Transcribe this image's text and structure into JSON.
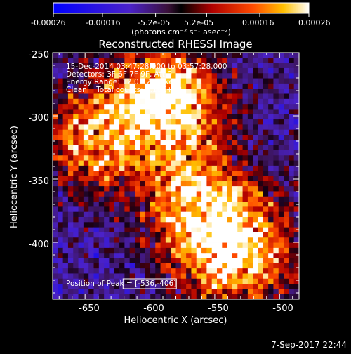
{
  "colorbar": {
    "tick_labels": [
      "-0.00026",
      "-0.00016",
      "-5.2e-05",
      "5.2e-05",
      "0.00016",
      "0.00026"
    ],
    "unit_label": "(photons cm⁻² s⁻¹ asec⁻²)",
    "range": [
      -0.00026,
      0.00026
    ]
  },
  "chart_data": {
    "type": "heatmap",
    "title": "Reconstructed RHESSI Image",
    "xlabel": "Heliocentric X (arcsec)",
    "ylabel": "Heliocentric Y (arcsec)",
    "xlim": [
      -675,
      -485
    ],
    "ylim": [
      -445,
      -250
    ],
    "x_ticks": [
      -650,
      -600,
      -550,
      -500
    ],
    "y_ticks": [
      -250,
      -300,
      -350,
      -400
    ],
    "annotations": [
      "15-Dec-2014 03:47:28.000 to 03:57:28.000",
      "Detectors: 3F 6F 7F 9F, Att 0",
      "Energy Range: 12.0 - 25.0 keV",
      "Clean    Total counts: 5.18E+03"
    ],
    "peak_label": "Position of Peak = [-536,-406]",
    "peak_position": [
      -536,
      -406
    ],
    "hot_regions": [
      {
        "x": -536,
        "y": -406,
        "level": 1.0
      },
      {
        "x": -567,
        "y": -362,
        "level": 0.7
      },
      {
        "x": -642,
        "y": -318,
        "level": 0.75
      },
      {
        "x": -594,
        "y": -278,
        "level": 0.6
      },
      {
        "x": -578,
        "y": -295,
        "level": 0.55
      }
    ]
  },
  "footer": {
    "timestamp": "7-Sep-2017 22:44"
  }
}
